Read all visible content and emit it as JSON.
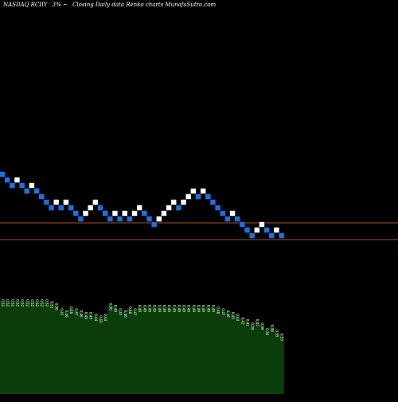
{
  "header": {
    "ticker": "NASDAQ RCIIY",
    "change": "3% ~",
    "chart_title": "Closing Daily data  Renko  charts MunafaSutra.com"
  },
  "colors": {
    "background": "#000000",
    "brick_up": "#ffffff",
    "brick_down": "#1e6fe0",
    "brick_border": "#0a0a0a",
    "level_line": "#a0522d",
    "volume_fill": "#0b3d0b",
    "volume_edge": "#ffffff",
    "label_color": "#ffffff"
  },
  "chart_data": {
    "type": "renko",
    "bricks": [
      {
        "dir": "down",
        "level": 31
      },
      {
        "dir": "down",
        "level": 30
      },
      {
        "dir": "down",
        "level": 29
      },
      {
        "dir": "up",
        "level": 30
      },
      {
        "dir": "down",
        "level": 29
      },
      {
        "dir": "down",
        "level": 28
      },
      {
        "dir": "up",
        "level": 29
      },
      {
        "dir": "down",
        "level": 28
      },
      {
        "dir": "down",
        "level": 27
      },
      {
        "dir": "down",
        "level": 26
      },
      {
        "dir": "down",
        "level": 25
      },
      {
        "dir": "up",
        "level": 26
      },
      {
        "dir": "down",
        "level": 25
      },
      {
        "dir": "up",
        "level": 26
      },
      {
        "dir": "down",
        "level": 25
      },
      {
        "dir": "down",
        "level": 24
      },
      {
        "dir": "down",
        "level": 23
      },
      {
        "dir": "up",
        "level": 24
      },
      {
        "dir": "up",
        "level": 25
      },
      {
        "dir": "up",
        "level": 26
      },
      {
        "dir": "down",
        "level": 25
      },
      {
        "dir": "down",
        "level": 24
      },
      {
        "dir": "down",
        "level": 23
      },
      {
        "dir": "up",
        "level": 24
      },
      {
        "dir": "down",
        "level": 23
      },
      {
        "dir": "up",
        "level": 24
      },
      {
        "dir": "down",
        "level": 23
      },
      {
        "dir": "up",
        "level": 24
      },
      {
        "dir": "up",
        "level": 25
      },
      {
        "dir": "down",
        "level": 24
      },
      {
        "dir": "down",
        "level": 23
      },
      {
        "dir": "down",
        "level": 22
      },
      {
        "dir": "up",
        "level": 23
      },
      {
        "dir": "up",
        "level": 24
      },
      {
        "dir": "up",
        "level": 25
      },
      {
        "dir": "up",
        "level": 26
      },
      {
        "dir": "down",
        "level": 25
      },
      {
        "dir": "up",
        "level": 26
      },
      {
        "dir": "up",
        "level": 27
      },
      {
        "dir": "up",
        "level": 28
      },
      {
        "dir": "down",
        "level": 27
      },
      {
        "dir": "up",
        "level": 28
      },
      {
        "dir": "down",
        "level": 27
      },
      {
        "dir": "down",
        "level": 26
      },
      {
        "dir": "down",
        "level": 25
      },
      {
        "dir": "down",
        "level": 24
      },
      {
        "dir": "down",
        "level": 23
      },
      {
        "dir": "up",
        "level": 24
      },
      {
        "dir": "down",
        "level": 23
      },
      {
        "dir": "down",
        "level": 22
      },
      {
        "dir": "down",
        "level": 21
      },
      {
        "dir": "down",
        "level": 20
      },
      {
        "dir": "up",
        "level": 21
      },
      {
        "dir": "up",
        "level": 22
      },
      {
        "dir": "down",
        "level": 21
      },
      {
        "dir": "down",
        "level": 20
      },
      {
        "dir": "up",
        "level": 21
      },
      {
        "dir": "down",
        "level": 20
      }
    ],
    "level_lines": [
      24,
      21
    ],
    "volume_labels": [
      "0.52",
      "0.52",
      "0.52",
      "0.52",
      "0.52",
      "0.52",
      "0.52",
      "0.52",
      "0.52",
      "0.52",
      "0.51",
      "0.50",
      "0.47",
      "0.46",
      "0.48",
      "0.47",
      "0.46",
      "0.45",
      "0.45",
      "0.44",
      "0.43",
      "0.44",
      "0.50",
      "0.49",
      "0.47",
      "0.46",
      "0.48",
      "0.47",
      "0.49",
      "0.49",
      "0.49",
      "0.49",
      "0.49",
      "0.49",
      "0.49",
      "0.49",
      "0.49",
      "0.49",
      "0.49",
      "0.49",
      "0.49",
      "0.49",
      "0.49",
      "0.49",
      "0.48",
      "0.47",
      "0.46",
      "0.45",
      "0.44",
      "0.42",
      "0.41",
      "0.39",
      "0.41",
      "0.39",
      "0.36",
      "0.38",
      "0.35",
      "0.33"
    ],
    "volume_values": [
      52,
      52,
      52,
      52,
      52,
      52,
      52,
      52,
      52,
      52,
      51,
      50,
      47,
      46,
      48,
      47,
      46,
      45,
      45,
      44,
      43,
      44,
      50,
      49,
      47,
      46,
      48,
      47,
      49,
      49,
      49,
      49,
      49,
      49,
      49,
      49,
      49,
      49,
      49,
      49,
      49,
      49,
      49,
      49,
      48,
      47,
      46,
      45,
      44,
      42,
      41,
      39,
      41,
      39,
      36,
      38,
      35,
      33
    ]
  }
}
